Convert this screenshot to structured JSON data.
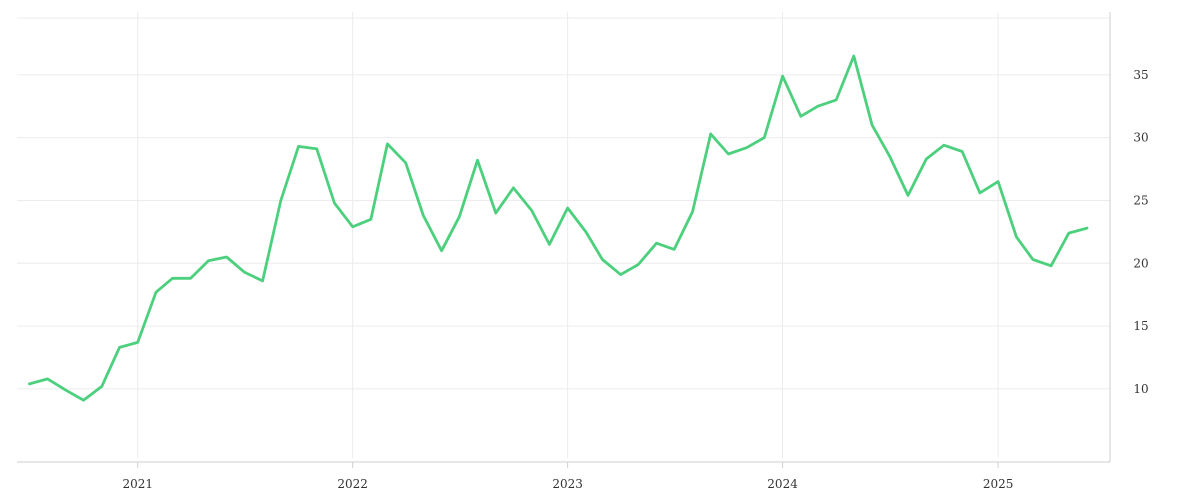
{
  "chart_data": {
    "type": "line",
    "title": "",
    "xlabel": "",
    "ylabel": "",
    "x_ticks": [
      "2021",
      "2022",
      "2023",
      "2024",
      "2025"
    ],
    "y_ticks": [
      10,
      15,
      20,
      25,
      30,
      35
    ],
    "ylim": [
      4.5,
      40
    ],
    "xlim": [
      "2020-06-10",
      "2025-07-10"
    ],
    "grid": true,
    "legend": "none",
    "y_axis_side": "right",
    "series": [
      {
        "color": "#4cd07d",
        "x": [
          "2020-07-01",
          "2020-08-01",
          "2020-09-01",
          "2020-10-01",
          "2020-11-01",
          "2020-12-01",
          "2021-01-01",
          "2021-02-01",
          "2021-03-01",
          "2021-04-01",
          "2021-05-01",
          "2021-06-01",
          "2021-07-01",
          "2021-08-01",
          "2021-09-01",
          "2021-10-01",
          "2021-11-01",
          "2021-12-01",
          "2022-01-01",
          "2022-02-01",
          "2022-03-01",
          "2022-04-01",
          "2022-05-01",
          "2022-06-01",
          "2022-07-01",
          "2022-08-01",
          "2022-09-01",
          "2022-10-01",
          "2022-11-01",
          "2022-12-01",
          "2023-01-01",
          "2023-02-01",
          "2023-03-01",
          "2023-04-01",
          "2023-05-01",
          "2023-06-01",
          "2023-07-01",
          "2023-08-01",
          "2023-09-01",
          "2023-10-01",
          "2023-11-01",
          "2023-12-01",
          "2024-01-01",
          "2024-02-01",
          "2024-03-01",
          "2024-04-01",
          "2024-05-01",
          "2024-06-01",
          "2024-07-01",
          "2024-08-01",
          "2024-09-01",
          "2024-10-01",
          "2024-11-01",
          "2024-12-01",
          "2025-01-01",
          "2025-02-01",
          "2025-03-01",
          "2025-04-01",
          "2025-05-01",
          "2025-06-01"
        ],
        "values": [
          10.4,
          10.8,
          9.9,
          9.1,
          10.2,
          13.3,
          13.7,
          17.7,
          18.8,
          18.8,
          20.2,
          20.5,
          19.3,
          18.6,
          25.0,
          29.3,
          29.1,
          24.8,
          22.9,
          23.5,
          29.5,
          28.0,
          23.8,
          21.0,
          23.7,
          28.2,
          24.0,
          26.0,
          24.2,
          21.5,
          24.4,
          22.5,
          20.3,
          19.1,
          19.9,
          21.6,
          21.1,
          24.1,
          30.3,
          28.7,
          29.2,
          30.0,
          34.9,
          31.7,
          32.5,
          33.0,
          36.5,
          31.0,
          28.5,
          25.4,
          28.3,
          29.4,
          28.9,
          25.6,
          26.5,
          22.1,
          20.3,
          19.8,
          22.4,
          22.8
        ]
      }
    ]
  }
}
